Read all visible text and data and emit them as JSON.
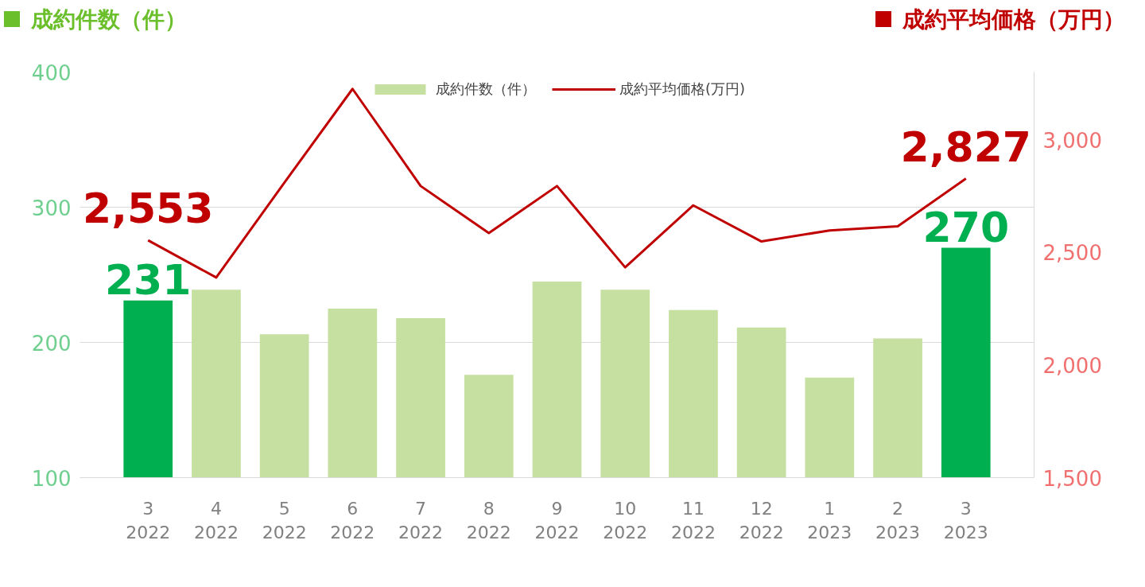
{
  "chart_data": {
    "type": "bar",
    "ylabel": "成約件数（件）",
    "y2label": "成約平均価格（万円）",
    "categories": [
      "3\n2022",
      "4\n2022",
      "5\n2022",
      "6\n2022",
      "7\n2022",
      "8\n2022",
      "9\n2022",
      "10\n2022",
      "11\n2022",
      "12\n2022",
      "1\n2023",
      "2\n2023",
      "3\n2023"
    ],
    "series": [
      {
        "name": "成約件数（件）",
        "color": "#c5e0a0",
        "colors": [
          "#00b050",
          "#c5e0a0",
          "#c5e0a0",
          "#c5e0a0",
          "#c5e0a0",
          "#c5e0a0",
          "#c5e0a0",
          "#c5e0a0",
          "#c5e0a0",
          "#c5e0a0",
          "#c5e0a0",
          "#c5e0a0",
          "#00b050"
        ],
        "values": [
          231,
          239,
          206,
          225,
          218,
          176,
          245,
          239,
          224,
          211,
          174,
          203,
          270
        ],
        "value_labels": [
          "231",
          null,
          null,
          null,
          null,
          null,
          null,
          null,
          null,
          null,
          null,
          null,
          "270"
        ]
      },
      {
        "name": "成約平均価格(万円)",
        "type": "line",
        "axis": "y2",
        "color": "#c00000",
        "values": [
          2553,
          2388,
          2809,
          3225,
          2794,
          2585,
          2794,
          2433,
          2708,
          2548,
          2597,
          2615,
          2827
        ],
        "value_labels": [
          "2,553",
          null,
          null,
          null,
          null,
          null,
          null,
          null,
          null,
          null,
          null,
          null,
          "2,827"
        ]
      }
    ],
    "ylim": [
      100,
      400
    ],
    "yticks": [
      100,
      200,
      300,
      400
    ],
    "y2lim": [
      1500,
      3300
    ],
    "y2ticks": [
      {
        "value": 1500,
        "label": "1,500"
      },
      {
        "value": 2000,
        "label": "2,000"
      },
      {
        "value": 2500,
        "label": "2,500"
      },
      {
        "value": 3000,
        "label": "3,000"
      }
    ],
    "grid": "y",
    "legend": "top",
    "marker": "none"
  }
}
